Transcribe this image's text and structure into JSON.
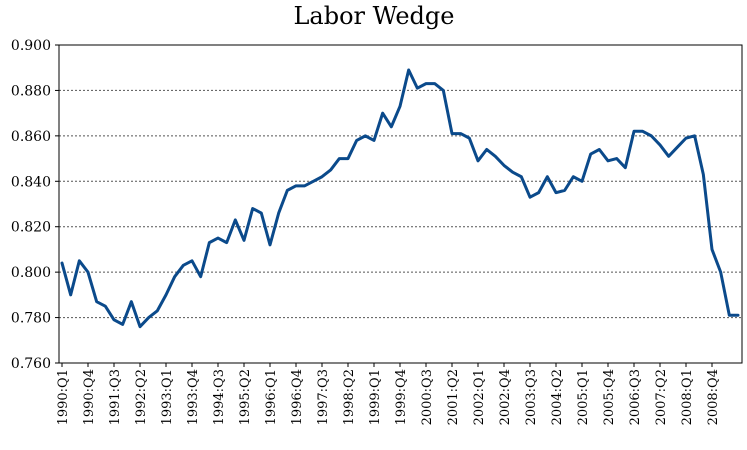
{
  "chart_data": {
    "type": "line",
    "title": "Labor Wedge",
    "xlabel": "",
    "ylabel": "",
    "ylim": [
      0.76,
      0.9
    ],
    "yticks": [
      "0.760",
      "0.780",
      "0.800",
      "0.820",
      "0.840",
      "0.860",
      "0.880",
      "0.900"
    ],
    "grid": "horizontal",
    "x_tick_labels": [
      "1990:Q1",
      "1990:Q4",
      "1991:Q3",
      "1992:Q2",
      "1993:Q1",
      "1993:Q4",
      "1994:Q3",
      "1995:Q2",
      "1996:Q1",
      "1996:Q4",
      "1997:Q3",
      "1998:Q2",
      "1999:Q1",
      "1999:Q4",
      "2000:Q3",
      "2001:Q2",
      "2002:Q1",
      "2002:Q4",
      "2003:Q3",
      "2004:Q2",
      "2005:Q1",
      "2005:Q4",
      "2006:Q3",
      "2007:Q2",
      "2008:Q1",
      "2008:Q4"
    ],
    "x": [
      "1990:Q1",
      "1990:Q2",
      "1990:Q3",
      "1990:Q4",
      "1991:Q1",
      "1991:Q2",
      "1991:Q3",
      "1991:Q4",
      "1992:Q1",
      "1992:Q2",
      "1992:Q3",
      "1992:Q4",
      "1993:Q1",
      "1993:Q2",
      "1993:Q3",
      "1993:Q4",
      "1994:Q1",
      "1994:Q2",
      "1994:Q3",
      "1994:Q4",
      "1995:Q1",
      "1995:Q2",
      "1995:Q3",
      "1995:Q4",
      "1996:Q1",
      "1996:Q2",
      "1996:Q3",
      "1996:Q4",
      "1997:Q1",
      "1997:Q2",
      "1997:Q3",
      "1997:Q4",
      "1998:Q1",
      "1998:Q2",
      "1998:Q3",
      "1998:Q4",
      "1999:Q1",
      "1999:Q2",
      "1999:Q3",
      "1999:Q4",
      "2000:Q1",
      "2000:Q2",
      "2000:Q3",
      "2000:Q4",
      "2001:Q1",
      "2001:Q2",
      "2001:Q3",
      "2001:Q4",
      "2002:Q1",
      "2002:Q2",
      "2002:Q3",
      "2002:Q4",
      "2003:Q1",
      "2003:Q2",
      "2003:Q3",
      "2003:Q4",
      "2004:Q1",
      "2004:Q2",
      "2004:Q3",
      "2004:Q4",
      "2005:Q1",
      "2005:Q2",
      "2005:Q3",
      "2005:Q4",
      "2006:Q1",
      "2006:Q2",
      "2006:Q3",
      "2006:Q4",
      "2007:Q1",
      "2007:Q2",
      "2007:Q3",
      "2007:Q4",
      "2008:Q1",
      "2008:Q2",
      "2008:Q3",
      "2008:Q4",
      "2009:Q1",
      "2009:Q2",
      "2009:Q3"
    ],
    "series": [
      {
        "color": "#0b4a8b",
        "values": [
          0.804,
          0.79,
          0.805,
          0.8,
          0.787,
          0.785,
          0.779,
          0.777,
          0.787,
          0.776,
          0.78,
          0.783,
          0.79,
          0.798,
          0.803,
          0.805,
          0.798,
          0.813,
          0.815,
          0.813,
          0.823,
          0.814,
          0.828,
          0.826,
          0.812,
          0.826,
          0.836,
          0.838,
          0.838,
          0.84,
          0.842,
          0.845,
          0.85,
          0.85,
          0.858,
          0.86,
          0.858,
          0.87,
          0.864,
          0.873,
          0.889,
          0.881,
          0.883,
          0.883,
          0.88,
          0.861,
          0.861,
          0.859,
          0.849,
          0.854,
          0.851,
          0.847,
          0.844,
          0.842,
          0.833,
          0.835,
          0.842,
          0.835,
          0.836,
          0.842,
          0.84,
          0.852,
          0.854,
          0.849,
          0.85,
          0.846,
          0.862,
          0.862,
          0.86,
          0.856,
          0.851,
          0.855,
          0.859,
          0.86,
          0.843,
          0.81,
          0.8,
          0.781,
          0.781
        ]
      }
    ]
  }
}
